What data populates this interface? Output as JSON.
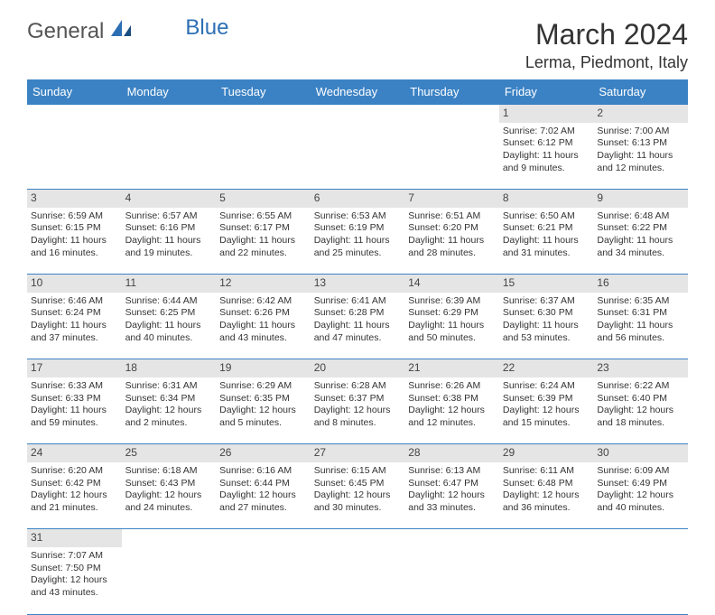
{
  "logo": {
    "general": "General",
    "blue": "Blue"
  },
  "title": "March 2024",
  "location": "Lerma, Piedmont, Italy",
  "colors": {
    "header_bg": "#3b82c4",
    "header_text": "#ffffff",
    "daynum_bg": "#e5e5e5",
    "border": "#3b82c4",
    "text": "#333333",
    "logo_blue": "#2d6fb5"
  },
  "weekdays": [
    "Sunday",
    "Monday",
    "Tuesday",
    "Wednesday",
    "Thursday",
    "Friday",
    "Saturday"
  ],
  "weeks": [
    {
      "nums": [
        "",
        "",
        "",
        "",
        "",
        "1",
        "2"
      ],
      "cells": [
        null,
        null,
        null,
        null,
        null,
        {
          "sunrise": "Sunrise: 7:02 AM",
          "sunset": "Sunset: 6:12 PM",
          "day1": "Daylight: 11 hours",
          "day2": "and 9 minutes."
        },
        {
          "sunrise": "Sunrise: 7:00 AM",
          "sunset": "Sunset: 6:13 PM",
          "day1": "Daylight: 11 hours",
          "day2": "and 12 minutes."
        }
      ]
    },
    {
      "nums": [
        "3",
        "4",
        "5",
        "6",
        "7",
        "8",
        "9"
      ],
      "cells": [
        {
          "sunrise": "Sunrise: 6:59 AM",
          "sunset": "Sunset: 6:15 PM",
          "day1": "Daylight: 11 hours",
          "day2": "and 16 minutes."
        },
        {
          "sunrise": "Sunrise: 6:57 AM",
          "sunset": "Sunset: 6:16 PM",
          "day1": "Daylight: 11 hours",
          "day2": "and 19 minutes."
        },
        {
          "sunrise": "Sunrise: 6:55 AM",
          "sunset": "Sunset: 6:17 PM",
          "day1": "Daylight: 11 hours",
          "day2": "and 22 minutes."
        },
        {
          "sunrise": "Sunrise: 6:53 AM",
          "sunset": "Sunset: 6:19 PM",
          "day1": "Daylight: 11 hours",
          "day2": "and 25 minutes."
        },
        {
          "sunrise": "Sunrise: 6:51 AM",
          "sunset": "Sunset: 6:20 PM",
          "day1": "Daylight: 11 hours",
          "day2": "and 28 minutes."
        },
        {
          "sunrise": "Sunrise: 6:50 AM",
          "sunset": "Sunset: 6:21 PM",
          "day1": "Daylight: 11 hours",
          "day2": "and 31 minutes."
        },
        {
          "sunrise": "Sunrise: 6:48 AM",
          "sunset": "Sunset: 6:22 PM",
          "day1": "Daylight: 11 hours",
          "day2": "and 34 minutes."
        }
      ]
    },
    {
      "nums": [
        "10",
        "11",
        "12",
        "13",
        "14",
        "15",
        "16"
      ],
      "cells": [
        {
          "sunrise": "Sunrise: 6:46 AM",
          "sunset": "Sunset: 6:24 PM",
          "day1": "Daylight: 11 hours",
          "day2": "and 37 minutes."
        },
        {
          "sunrise": "Sunrise: 6:44 AM",
          "sunset": "Sunset: 6:25 PM",
          "day1": "Daylight: 11 hours",
          "day2": "and 40 minutes."
        },
        {
          "sunrise": "Sunrise: 6:42 AM",
          "sunset": "Sunset: 6:26 PM",
          "day1": "Daylight: 11 hours",
          "day2": "and 43 minutes."
        },
        {
          "sunrise": "Sunrise: 6:41 AM",
          "sunset": "Sunset: 6:28 PM",
          "day1": "Daylight: 11 hours",
          "day2": "and 47 minutes."
        },
        {
          "sunrise": "Sunrise: 6:39 AM",
          "sunset": "Sunset: 6:29 PM",
          "day1": "Daylight: 11 hours",
          "day2": "and 50 minutes."
        },
        {
          "sunrise": "Sunrise: 6:37 AM",
          "sunset": "Sunset: 6:30 PM",
          "day1": "Daylight: 11 hours",
          "day2": "and 53 minutes."
        },
        {
          "sunrise": "Sunrise: 6:35 AM",
          "sunset": "Sunset: 6:31 PM",
          "day1": "Daylight: 11 hours",
          "day2": "and 56 minutes."
        }
      ]
    },
    {
      "nums": [
        "17",
        "18",
        "19",
        "20",
        "21",
        "22",
        "23"
      ],
      "cells": [
        {
          "sunrise": "Sunrise: 6:33 AM",
          "sunset": "Sunset: 6:33 PM",
          "day1": "Daylight: 11 hours",
          "day2": "and 59 minutes."
        },
        {
          "sunrise": "Sunrise: 6:31 AM",
          "sunset": "Sunset: 6:34 PM",
          "day1": "Daylight: 12 hours",
          "day2": "and 2 minutes."
        },
        {
          "sunrise": "Sunrise: 6:29 AM",
          "sunset": "Sunset: 6:35 PM",
          "day1": "Daylight: 12 hours",
          "day2": "and 5 minutes."
        },
        {
          "sunrise": "Sunrise: 6:28 AM",
          "sunset": "Sunset: 6:37 PM",
          "day1": "Daylight: 12 hours",
          "day2": "and 8 minutes."
        },
        {
          "sunrise": "Sunrise: 6:26 AM",
          "sunset": "Sunset: 6:38 PM",
          "day1": "Daylight: 12 hours",
          "day2": "and 12 minutes."
        },
        {
          "sunrise": "Sunrise: 6:24 AM",
          "sunset": "Sunset: 6:39 PM",
          "day1": "Daylight: 12 hours",
          "day2": "and 15 minutes."
        },
        {
          "sunrise": "Sunrise: 6:22 AM",
          "sunset": "Sunset: 6:40 PM",
          "day1": "Daylight: 12 hours",
          "day2": "and 18 minutes."
        }
      ]
    },
    {
      "nums": [
        "24",
        "25",
        "26",
        "27",
        "28",
        "29",
        "30"
      ],
      "cells": [
        {
          "sunrise": "Sunrise: 6:20 AM",
          "sunset": "Sunset: 6:42 PM",
          "day1": "Daylight: 12 hours",
          "day2": "and 21 minutes."
        },
        {
          "sunrise": "Sunrise: 6:18 AM",
          "sunset": "Sunset: 6:43 PM",
          "day1": "Daylight: 12 hours",
          "day2": "and 24 minutes."
        },
        {
          "sunrise": "Sunrise: 6:16 AM",
          "sunset": "Sunset: 6:44 PM",
          "day1": "Daylight: 12 hours",
          "day2": "and 27 minutes."
        },
        {
          "sunrise": "Sunrise: 6:15 AM",
          "sunset": "Sunset: 6:45 PM",
          "day1": "Daylight: 12 hours",
          "day2": "and 30 minutes."
        },
        {
          "sunrise": "Sunrise: 6:13 AM",
          "sunset": "Sunset: 6:47 PM",
          "day1": "Daylight: 12 hours",
          "day2": "and 33 minutes."
        },
        {
          "sunrise": "Sunrise: 6:11 AM",
          "sunset": "Sunset: 6:48 PM",
          "day1": "Daylight: 12 hours",
          "day2": "and 36 minutes."
        },
        {
          "sunrise": "Sunrise: 6:09 AM",
          "sunset": "Sunset: 6:49 PM",
          "day1": "Daylight: 12 hours",
          "day2": "and 40 minutes."
        }
      ]
    },
    {
      "nums": [
        "31",
        "",
        "",
        "",
        "",
        "",
        ""
      ],
      "cells": [
        {
          "sunrise": "Sunrise: 7:07 AM",
          "sunset": "Sunset: 7:50 PM",
          "day1": "Daylight: 12 hours",
          "day2": "and 43 minutes."
        },
        null,
        null,
        null,
        null,
        null,
        null
      ]
    }
  ]
}
